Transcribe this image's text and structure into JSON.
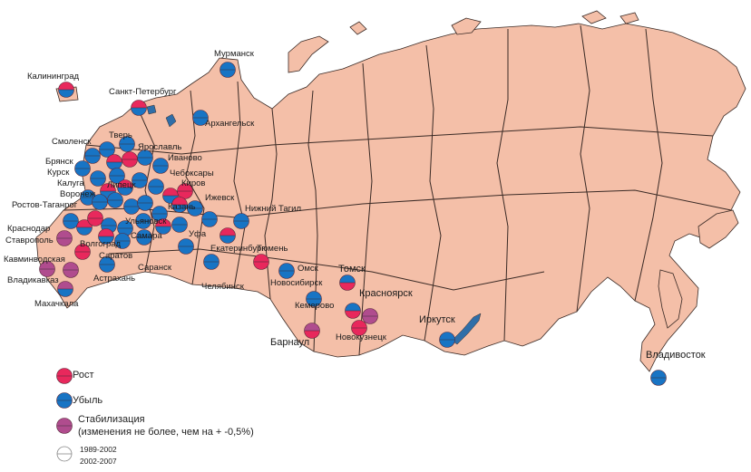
{
  "colors": {
    "land": "#f4bfa8",
    "border": "#3a2a25",
    "water": "#2f6ea8",
    "growth": "#e8285c",
    "decline": "#1874c4",
    "stable": "#b04c8e"
  },
  "legend": {
    "growth": "Рост",
    "decline": "Убыль",
    "stable_line1": "Стабилизация",
    "stable_line2": "(изменения не более, чем на + -0,5%)",
    "period_top": "1989-2002",
    "period_bottom": "2002-2007"
  },
  "cities": {
    "kaliningrad": "Калининград",
    "murmansk": "Мурманск",
    "spb": "Санкт-Петербург",
    "arkhangelsk": "Архангельск",
    "tver": "Тверь",
    "smolensk": "Смоленск",
    "yaroslavl": "Ярославль",
    "ivanovo": "Иваново",
    "bryansk": "Брянск",
    "kursk": "Курск",
    "kaluga": "Калуга",
    "voronezh": "Воронеж",
    "lipetsk": "Липецк",
    "cheboksary": "Чебоксары",
    "kirov": "Киров",
    "izhevsk": "Ижевск",
    "kazan": "Казань",
    "rostov": "Ростов-Таганрог",
    "krasnodar": "Краснодар",
    "stavropol": "Ставрополь",
    "volgograd": "Волгоград",
    "ufa": "Уфа",
    "samara": "Самара",
    "ulyanovsk": "Ульяновск",
    "saratov": "Саратов",
    "saransk": "Саранск",
    "kavminvody": "Кавминводская",
    "astrakhan": "Астрахань",
    "vladikavkaz": "Владикавказ",
    "makhachkala": "Махачкала",
    "ntagil": "Нижний Тагил",
    "ekaterinburg": "Екатеринбург",
    "chelyabinsk": "Челябинск",
    "tyumen": "Тюмень",
    "omsk": "Омск",
    "novosibirsk": "Новосибирск",
    "tomsk": "Томск",
    "krasnoyarsk": "Красноярск",
    "kemerovo": "Кемерово",
    "barnaul": "Барнаул",
    "novokuznetsk": "Новокузнецк",
    "irkutsk": "Иркутск",
    "vladivostok": "Владивосток"
  }
}
